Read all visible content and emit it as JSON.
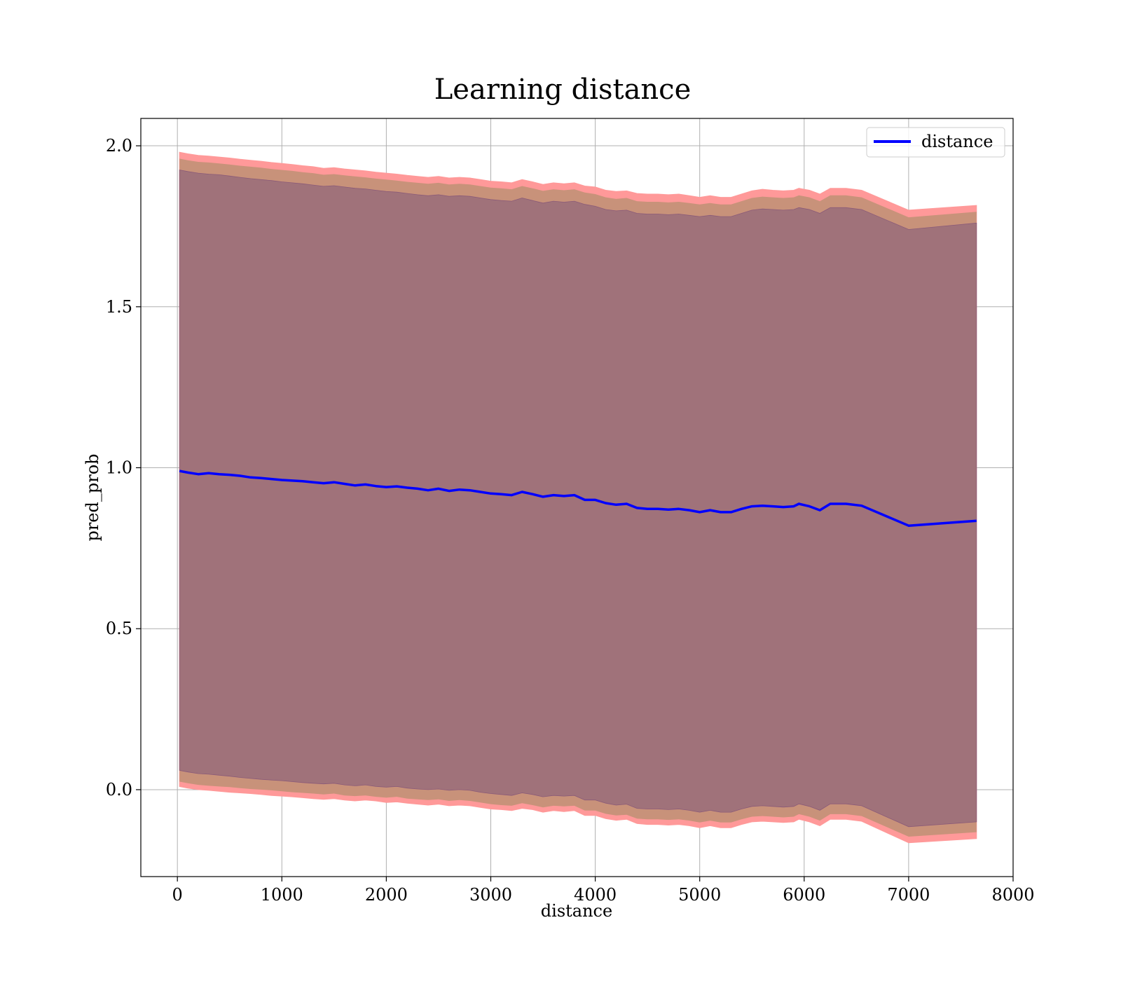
{
  "chart_data": {
    "type": "line",
    "title": "Learning distance",
    "xlabel": "distance",
    "ylabel": "pred_prob",
    "xlim": [
      -350,
      8000
    ],
    "ylim": [
      -0.27,
      2.085
    ],
    "xticks": [
      0,
      1000,
      2000,
      3000,
      4000,
      5000,
      6000,
      7000,
      8000
    ],
    "xtick_labels": [
      "0",
      "1000",
      "2000",
      "3000",
      "4000",
      "5000",
      "6000",
      "7000",
      "8000"
    ],
    "yticks": [
      0.0,
      0.5,
      1.0,
      1.5,
      2.0
    ],
    "ytick_labels": [
      "0.0",
      "0.5",
      "1.0",
      "1.5",
      "2.0"
    ],
    "grid": true,
    "legend": {
      "position": "top-right",
      "entries": [
        "distance"
      ]
    },
    "colors": {
      "line": "#0000ff",
      "band_outer": "#ff9999",
      "band_middle": "#c8927a",
      "band_inner": "#a0727a",
      "grid": "#b0b0b0"
    },
    "series": [
      {
        "name": "distance",
        "x": [
          20,
          100,
          200,
          300,
          400,
          500,
          600,
          700,
          800,
          900,
          1000,
          1100,
          1200,
          1300,
          1400,
          1500,
          1600,
          1700,
          1800,
          1900,
          2000,
          2100,
          2200,
          2300,
          2400,
          2500,
          2600,
          2700,
          2800,
          2900,
          3000,
          3100,
          3200,
          3300,
          3400,
          3500,
          3600,
          3700,
          3800,
          3900,
          4000,
          4100,
          4200,
          4300,
          4400,
          4500,
          4600,
          4700,
          4800,
          4900,
          5000,
          5100,
          5200,
          5300,
          5400,
          5500,
          5600,
          5700,
          5800,
          5900,
          5950,
          6050,
          6150,
          6250,
          6400,
          6550,
          7000,
          7650
        ],
        "y": [
          0.99,
          0.985,
          0.98,
          0.983,
          0.98,
          0.978,
          0.975,
          0.97,
          0.968,
          0.965,
          0.962,
          0.96,
          0.958,
          0.955,
          0.952,
          0.955,
          0.95,
          0.945,
          0.948,
          0.943,
          0.94,
          0.942,
          0.938,
          0.935,
          0.93,
          0.935,
          0.928,
          0.932,
          0.93,
          0.925,
          0.92,
          0.918,
          0.915,
          0.925,
          0.918,
          0.91,
          0.915,
          0.912,
          0.915,
          0.9,
          0.9,
          0.89,
          0.885,
          0.888,
          0.875,
          0.872,
          0.872,
          0.87,
          0.872,
          0.868,
          0.862,
          0.868,
          0.862,
          0.862,
          0.872,
          0.88,
          0.882,
          0.88,
          0.878,
          0.88,
          0.888,
          0.88,
          0.868,
          0.888,
          0.888,
          0.882,
          0.82,
          0.835
        ],
        "band_outer_upper": [
          1.98,
          1.975,
          1.97,
          1.968,
          1.965,
          1.962,
          1.958,
          1.955,
          1.952,
          1.948,
          1.945,
          1.942,
          1.938,
          1.935,
          1.93,
          1.932,
          1.928,
          1.925,
          1.922,
          1.918,
          1.915,
          1.912,
          1.908,
          1.905,
          1.902,
          1.905,
          1.9,
          1.902,
          1.9,
          1.895,
          1.89,
          1.888,
          1.885,
          1.895,
          1.888,
          1.88,
          1.885,
          1.882,
          1.885,
          1.875,
          1.872,
          1.862,
          1.858,
          1.86,
          1.852,
          1.85,
          1.85,
          1.848,
          1.85,
          1.845,
          1.84,
          1.845,
          1.84,
          1.84,
          1.85,
          1.86,
          1.865,
          1.862,
          1.86,
          1.862,
          1.868,
          1.862,
          1.85,
          1.868,
          1.868,
          1.862,
          1.8,
          1.815
        ],
        "band_outer_lower": [
          0.01,
          0.005,
          0.0,
          -0.002,
          -0.005,
          -0.008,
          -0.01,
          -0.012,
          -0.015,
          -0.018,
          -0.02,
          -0.022,
          -0.025,
          -0.028,
          -0.03,
          -0.028,
          -0.032,
          -0.035,
          -0.032,
          -0.035,
          -0.04,
          -0.038,
          -0.042,
          -0.045,
          -0.048,
          -0.045,
          -0.05,
          -0.048,
          -0.05,
          -0.055,
          -0.06,
          -0.062,
          -0.065,
          -0.058,
          -0.062,
          -0.07,
          -0.065,
          -0.068,
          -0.065,
          -0.08,
          -0.08,
          -0.09,
          -0.095,
          -0.092,
          -0.105,
          -0.108,
          -0.108,
          -0.11,
          -0.108,
          -0.112,
          -0.118,
          -0.112,
          -0.118,
          -0.118,
          -0.108,
          -0.1,
          -0.098,
          -0.1,
          -0.102,
          -0.1,
          -0.092,
          -0.1,
          -0.112,
          -0.092,
          -0.092,
          -0.098,
          -0.165,
          -0.152
        ],
        "band_middle_upper": [
          1.96,
          1.955,
          1.95,
          1.948,
          1.945,
          1.942,
          1.938,
          1.935,
          1.932,
          1.928,
          1.925,
          1.922,
          1.918,
          1.915,
          1.91,
          1.912,
          1.908,
          1.905,
          1.902,
          1.898,
          1.895,
          1.892,
          1.888,
          1.885,
          1.882,
          1.885,
          1.88,
          1.882,
          1.88,
          1.875,
          1.87,
          1.868,
          1.865,
          1.875,
          1.868,
          1.86,
          1.865,
          1.862,
          1.865,
          1.855,
          1.85,
          1.84,
          1.835,
          1.838,
          1.828,
          1.826,
          1.826,
          1.824,
          1.826,
          1.822,
          1.818,
          1.822,
          1.818,
          1.818,
          1.828,
          1.838,
          1.842,
          1.84,
          1.838,
          1.84,
          1.846,
          1.84,
          1.828,
          1.846,
          1.846,
          1.84,
          1.778,
          1.795
        ],
        "band_middle_lower": [
          0.025,
          0.02,
          0.015,
          0.012,
          0.01,
          0.008,
          0.005,
          0.002,
          0.0,
          -0.002,
          -0.005,
          -0.008,
          -0.01,
          -0.012,
          -0.015,
          -0.012,
          -0.018,
          -0.02,
          -0.018,
          -0.022,
          -0.025,
          -0.022,
          -0.028,
          -0.03,
          -0.032,
          -0.03,
          -0.035,
          -0.032,
          -0.035,
          -0.04,
          -0.045,
          -0.048,
          -0.05,
          -0.042,
          -0.048,
          -0.055,
          -0.05,
          -0.052,
          -0.05,
          -0.065,
          -0.065,
          -0.075,
          -0.08,
          -0.078,
          -0.09,
          -0.092,
          -0.092,
          -0.094,
          -0.092,
          -0.096,
          -0.102,
          -0.096,
          -0.102,
          -0.102,
          -0.092,
          -0.084,
          -0.082,
          -0.084,
          -0.086,
          -0.084,
          -0.076,
          -0.084,
          -0.096,
          -0.076,
          -0.076,
          -0.082,
          -0.146,
          -0.132
        ],
        "band_inner_upper": [
          1.925,
          1.92,
          1.915,
          1.912,
          1.91,
          1.906,
          1.902,
          1.898,
          1.895,
          1.892,
          1.888,
          1.885,
          1.882,
          1.878,
          1.874,
          1.876,
          1.872,
          1.868,
          1.866,
          1.862,
          1.858,
          1.856,
          1.852,
          1.848,
          1.845,
          1.848,
          1.843,
          1.845,
          1.843,
          1.838,
          1.833,
          1.83,
          1.828,
          1.838,
          1.83,
          1.822,
          1.828,
          1.825,
          1.828,
          1.818,
          1.812,
          1.802,
          1.798,
          1.8,
          1.79,
          1.788,
          1.788,
          1.786,
          1.788,
          1.784,
          1.78,
          1.784,
          1.78,
          1.78,
          1.79,
          1.8,
          1.804,
          1.802,
          1.8,
          1.802,
          1.808,
          1.802,
          1.79,
          1.808,
          1.808,
          1.802,
          1.74,
          1.76
        ],
        "band_inner_lower": [
          0.06,
          0.055,
          0.05,
          0.048,
          0.045,
          0.042,
          0.038,
          0.035,
          0.032,
          0.03,
          0.028,
          0.025,
          0.022,
          0.02,
          0.018,
          0.02,
          0.015,
          0.012,
          0.015,
          0.01,
          0.008,
          0.01,
          0.005,
          0.002,
          0.0,
          0.002,
          -0.002,
          0.0,
          -0.002,
          -0.008,
          -0.012,
          -0.015,
          -0.018,
          -0.01,
          -0.015,
          -0.022,
          -0.018,
          -0.02,
          -0.018,
          -0.032,
          -0.032,
          -0.042,
          -0.048,
          -0.045,
          -0.058,
          -0.06,
          -0.06,
          -0.062,
          -0.06,
          -0.064,
          -0.07,
          -0.064,
          -0.07,
          -0.07,
          -0.06,
          -0.052,
          -0.05,
          -0.052,
          -0.054,
          -0.052,
          -0.044,
          -0.052,
          -0.064,
          -0.044,
          -0.044,
          -0.05,
          -0.115,
          -0.1
        ]
      }
    ]
  }
}
